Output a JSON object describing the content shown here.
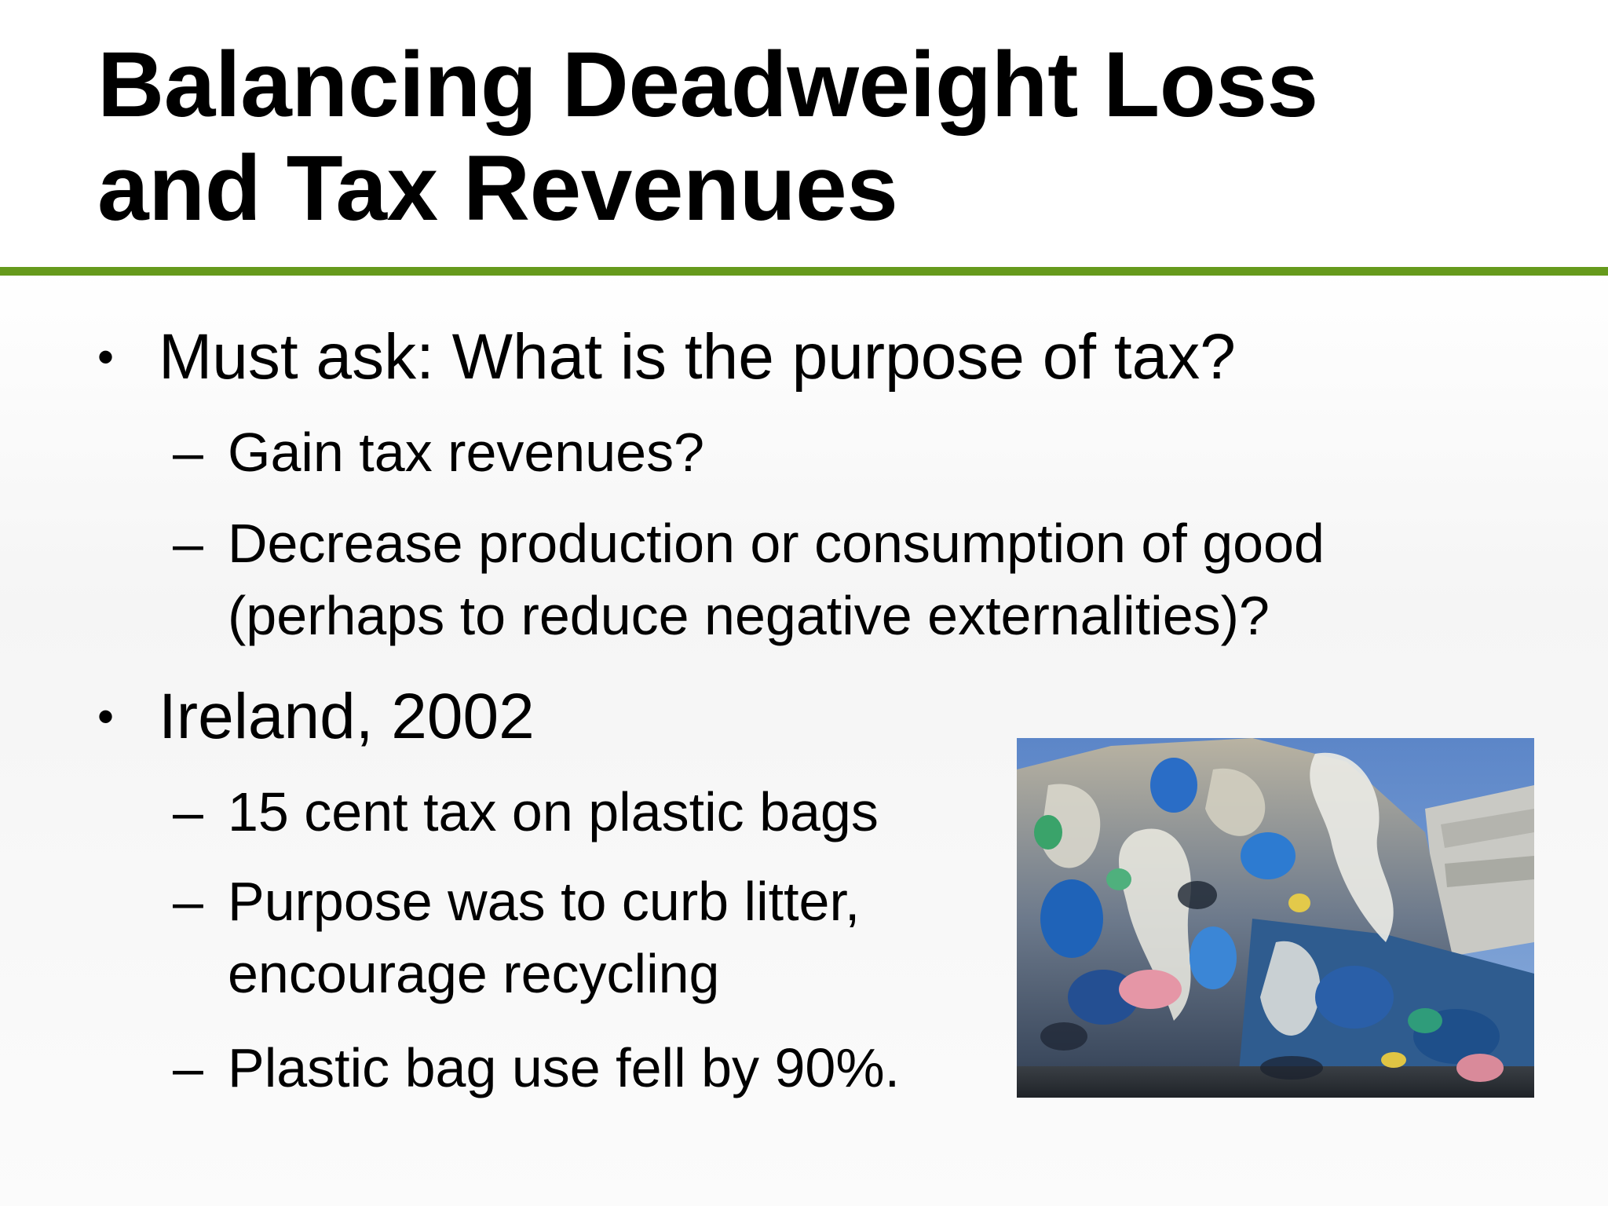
{
  "slide": {
    "title_line1": "Balancing Deadweight Loss",
    "title_line2": "and Tax Revenues",
    "accent_color": "#669a1c",
    "bullets": [
      {
        "marker": "•",
        "text": "Must ask: What is the purpose of tax?",
        "subs": [
          {
            "marker": "–",
            "text": "Gain tax revenues?"
          },
          {
            "marker": "–",
            "text": "Decrease production or consumption of good\n(perhaps to reduce negative externalities)?"
          }
        ]
      },
      {
        "marker": "•",
        "text": "Ireland, 2002",
        "subs": [
          {
            "marker": "–",
            "text": "15 cent tax on plastic bags"
          },
          {
            "marker": "–",
            "text": "Purpose was to curb litter,\nencourage recycling"
          },
          {
            "marker": "–",
            "text": "Plastic bag use fell by 90%."
          }
        ]
      }
    ],
    "photo_icon": "plastic-bags-bale-photo"
  }
}
